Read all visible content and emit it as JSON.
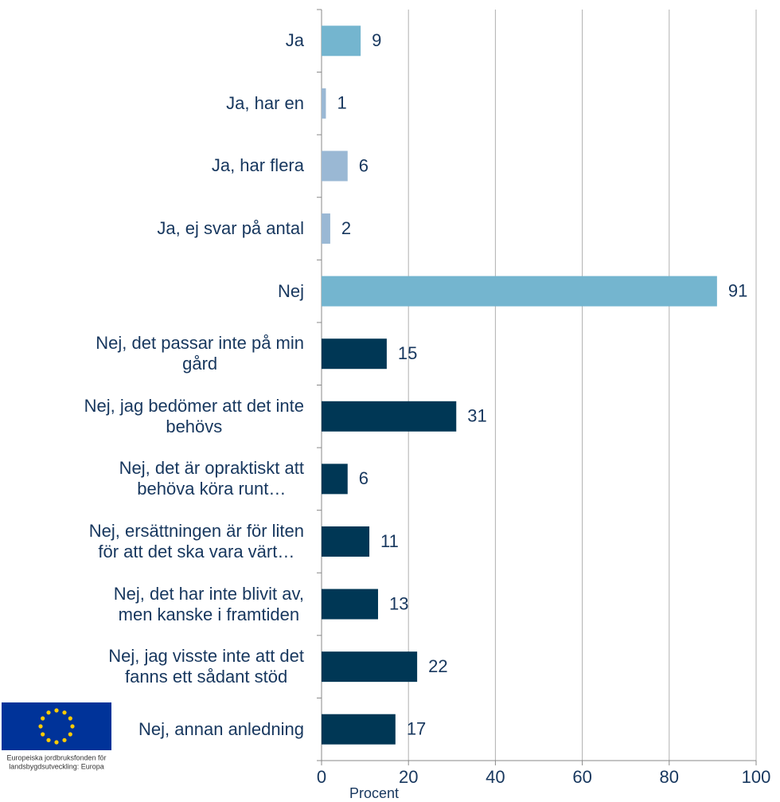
{
  "chart_data": {
    "type": "hbar",
    "categories": [
      "Ja",
      "Ja, har en",
      "Ja, har flera",
      "Ja, ej svar på antal",
      "Nej",
      "Nej, det passar inte på min\ngård",
      "Nej, jag bedömer att det inte\nbehövs",
      "Nej, det är opraktiskt att\nbehöva köra runt…",
      "Nej, ersättningen är för liten\nför att det ska vara värt…",
      "Nej, det har inte blivit av,\nmen kanske i framtiden",
      "Nej, jag visste inte att det\nfanns ett sådant stöd",
      "Nej, annan anledning"
    ],
    "values": [
      9,
      1,
      6,
      2,
      91,
      15,
      31,
      6,
      11,
      13,
      22,
      17
    ],
    "colors": [
      "#74b5cf",
      "#9ab8d4",
      "#9ab8d4",
      "#9ab8d4",
      "#74b5cf",
      "#003755",
      "#003755",
      "#003755",
      "#003755",
      "#003755",
      "#003755",
      "#003755"
    ],
    "xlabel": "Procent",
    "xlim": [
      0,
      100
    ],
    "xticks": [
      0,
      20,
      40,
      60,
      80,
      100
    ],
    "grid": true
  },
  "logo": {
    "lines": [
      "Europeiska jordbruksfonden för",
      "landsbygdsutveckling: Europa"
    ]
  }
}
